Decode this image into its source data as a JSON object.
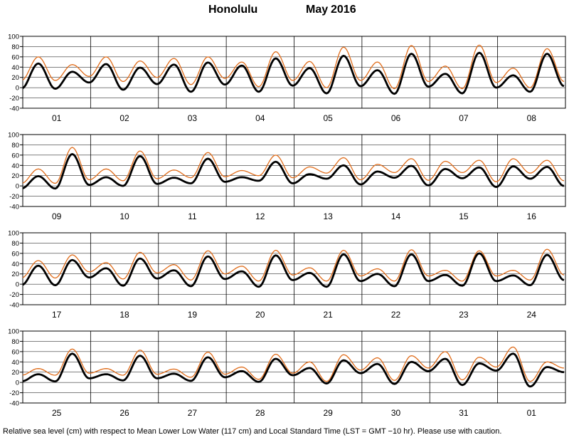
{
  "title": {
    "location": "Honolulu",
    "month": "May",
    "year": "2016"
  },
  "footer": "Relative sea level (cm) with respect to Mean Lower Low Water (117 cm) and Local Standard Time (LST = GMT −10 hr). Please use with caution.",
  "colors": {
    "observed": "#000000",
    "predicted": "#e06c1a",
    "grid": "#000000"
  },
  "chart_data": {
    "type": "line",
    "ylim": [
      -40,
      100
    ],
    "yticks": [
      -40,
      -20,
      0,
      20,
      40,
      60,
      80,
      100
    ],
    "grid": true,
    "series_info": [
      {
        "name": "",
        "color": "#e06c1a"
      },
      {
        "name": "",
        "color": "#000000"
      }
    ],
    "panels": [
      {
        "days": [
          "01",
          "02",
          "03",
          "04",
          "05",
          "06",
          "07",
          "08"
        ],
        "observed": [
          {
            "hour": 0,
            "high": 47,
            "low": -2
          },
          {
            "hour": 12,
            "high": 31,
            "low": 10
          },
          {
            "hour": 24,
            "high": 46,
            "low": -4
          },
          {
            "hour": 36,
            "high": 39,
            "low": 7
          },
          {
            "hour": 48,
            "high": 45,
            "low": -8
          },
          {
            "hour": 60,
            "high": 49,
            "low": 6
          },
          {
            "hour": 72,
            "high": 43,
            "low": -8
          },
          {
            "hour": 84,
            "high": 57,
            "low": 4
          },
          {
            "hour": 96,
            "high": 38,
            "low": -11
          },
          {
            "hour": 108,
            "high": 62,
            "low": 3
          },
          {
            "hour": 120,
            "high": 34,
            "low": -12
          },
          {
            "hour": 132,
            "high": 66,
            "low": 2
          },
          {
            "hour": 144,
            "high": 27,
            "low": -11
          },
          {
            "hour": 156,
            "high": 68,
            "low": 0
          },
          {
            "hour": 168,
            "high": 24,
            "low": -8
          },
          {
            "hour": 180,
            "high": 66,
            "low": 3
          }
        ],
        "predicted": [
          {
            "hour": 0,
            "high": 60,
            "low": 14
          },
          {
            "hour": 12,
            "high": 45,
            "low": 22
          },
          {
            "hour": 24,
            "high": 60,
            "low": 12
          },
          {
            "hour": 36,
            "high": 52,
            "low": 20
          },
          {
            "hour": 48,
            "high": 57,
            "low": 6
          },
          {
            "hour": 60,
            "high": 60,
            "low": 18
          },
          {
            "hour": 72,
            "high": 50,
            "low": 2
          },
          {
            "hour": 84,
            "high": 70,
            "low": 14
          },
          {
            "hour": 96,
            "high": 51,
            "low": 0
          },
          {
            "hour": 108,
            "high": 79,
            "low": 14
          },
          {
            "hour": 120,
            "high": 50,
            "low": -2
          },
          {
            "hour": 132,
            "high": 82,
            "low": 12
          },
          {
            "hour": 144,
            "high": 42,
            "low": -2
          },
          {
            "hour": 156,
            "high": 83,
            "low": 10
          },
          {
            "hour": 168,
            "high": 38,
            "low": 0
          },
          {
            "hour": 180,
            "high": 76,
            "low": 12
          }
        ]
      },
      {
        "days": [
          "09",
          "10",
          "11",
          "12",
          "13",
          "14",
          "15",
          "16"
        ],
        "observed": [
          {
            "hour": 0,
            "high": 19,
            "low": -5
          },
          {
            "hour": 12,
            "high": 62,
            "low": 2
          },
          {
            "hour": 24,
            "high": 17,
            "low": 0
          },
          {
            "hour": 36,
            "high": 58,
            "low": 4
          },
          {
            "hour": 48,
            "high": 16,
            "low": 5
          },
          {
            "hour": 60,
            "high": 53,
            "low": 8
          },
          {
            "hour": 72,
            "high": 17,
            "low": 10
          },
          {
            "hour": 84,
            "high": 47,
            "low": 5
          },
          {
            "hour": 96,
            "high": 23,
            "low": 14
          },
          {
            "hour": 108,
            "high": 40,
            "low": 3
          },
          {
            "hour": 120,
            "high": 28,
            "low": 16
          },
          {
            "hour": 132,
            "high": 39,
            "low": 1
          },
          {
            "hour": 144,
            "high": 33,
            "low": 15
          },
          {
            "hour": 156,
            "high": 36,
            "low": -2
          },
          {
            "hour": 168,
            "high": 38,
            "low": 14
          },
          {
            "hour": 180,
            "high": 37,
            "low": 0
          }
        ],
        "predicted": [
          {
            "hour": 0,
            "high": 33,
            "low": 5
          },
          {
            "hour": 12,
            "high": 75,
            "low": 12
          },
          {
            "hour": 24,
            "high": 33,
            "low": 10
          },
          {
            "hour": 36,
            "high": 68,
            "low": 14
          },
          {
            "hour": 48,
            "high": 31,
            "low": 16
          },
          {
            "hour": 60,
            "high": 65,
            "low": 18
          },
          {
            "hour": 72,
            "high": 30,
            "low": 20
          },
          {
            "hour": 84,
            "high": 60,
            "low": 16
          },
          {
            "hour": 96,
            "high": 37,
            "low": 25
          },
          {
            "hour": 108,
            "high": 55,
            "low": 12
          },
          {
            "hour": 120,
            "high": 42,
            "low": 26
          },
          {
            "hour": 132,
            "high": 53,
            "low": 11
          },
          {
            "hour": 144,
            "high": 48,
            "low": 26
          },
          {
            "hour": 156,
            "high": 50,
            "low": 8
          },
          {
            "hour": 168,
            "high": 53,
            "low": 25
          },
          {
            "hour": 180,
            "high": 50,
            "low": 10
          }
        ]
      },
      {
        "days": [
          "17",
          "18",
          "19",
          "20",
          "21",
          "22",
          "23",
          "24"
        ],
        "observed": [
          {
            "hour": 0,
            "high": 36,
            "low": -2
          },
          {
            "hour": 12,
            "high": 47,
            "low": 13
          },
          {
            "hour": 24,
            "high": 31,
            "low": -3
          },
          {
            "hour": 36,
            "high": 50,
            "low": 11
          },
          {
            "hour": 48,
            "high": 27,
            "low": -4
          },
          {
            "hour": 60,
            "high": 54,
            "low": 10
          },
          {
            "hour": 72,
            "high": 25,
            "low": -5
          },
          {
            "hour": 84,
            "high": 56,
            "low": 8
          },
          {
            "hour": 96,
            "high": 22,
            "low": -5
          },
          {
            "hour": 108,
            "high": 58,
            "low": 6
          },
          {
            "hour": 120,
            "high": 20,
            "low": -4
          },
          {
            "hour": 132,
            "high": 58,
            "low": 6
          },
          {
            "hour": 144,
            "high": 18,
            "low": -3
          },
          {
            "hour": 156,
            "high": 60,
            "low": 6
          },
          {
            "hour": 168,
            "high": 17,
            "low": -2
          },
          {
            "hour": 180,
            "high": 57,
            "low": 8
          }
        ],
        "predicted": [
          {
            "hour": 0,
            "high": 46,
            "low": 12
          },
          {
            "hour": 12,
            "high": 57,
            "low": 24
          },
          {
            "hour": 24,
            "high": 42,
            "low": 10
          },
          {
            "hour": 36,
            "high": 62,
            "low": 22
          },
          {
            "hour": 48,
            "high": 38,
            "low": 8
          },
          {
            "hour": 60,
            "high": 65,
            "low": 20
          },
          {
            "hour": 72,
            "high": 35,
            "low": 6
          },
          {
            "hour": 84,
            "high": 66,
            "low": 18
          },
          {
            "hour": 96,
            "high": 32,
            "low": 6
          },
          {
            "hour": 108,
            "high": 66,
            "low": 16
          },
          {
            "hour": 120,
            "high": 30,
            "low": 6
          },
          {
            "hour": 132,
            "high": 67,
            "low": 16
          },
          {
            "hour": 144,
            "high": 27,
            "low": 6
          },
          {
            "hour": 156,
            "high": 65,
            "low": 16
          },
          {
            "hour": 168,
            "high": 27,
            "low": 8
          },
          {
            "hour": 180,
            "high": 68,
            "low": 18
          }
        ]
      },
      {
        "days": [
          "25",
          "26",
          "27",
          "28",
          "29",
          "30",
          "31",
          "01"
        ],
        "observed": [
          {
            "hour": 0,
            "high": 16,
            "low": 2
          },
          {
            "hour": 12,
            "high": 56,
            "low": 8
          },
          {
            "hour": 24,
            "high": 16,
            "low": 4
          },
          {
            "hour": 36,
            "high": 52,
            "low": 8
          },
          {
            "hour": 48,
            "high": 17,
            "low": 3
          },
          {
            "hour": 60,
            "high": 49,
            "low": 10
          },
          {
            "hour": 72,
            "high": 22,
            "low": 1
          },
          {
            "hour": 84,
            "high": 46,
            "low": 14
          },
          {
            "hour": 96,
            "high": 28,
            "low": -2
          },
          {
            "hour": 108,
            "high": 43,
            "low": 18
          },
          {
            "hour": 120,
            "high": 36,
            "low": -3
          },
          {
            "hour": 132,
            "high": 40,
            "low": 22
          },
          {
            "hour": 144,
            "high": 46,
            "low": -5
          },
          {
            "hour": 156,
            "high": 37,
            "low": 23
          },
          {
            "hour": 168,
            "high": 56,
            "low": -8
          },
          {
            "hour": 180,
            "high": 30,
            "low": 20
          }
        ],
        "predicted": [
          {
            "hour": 0,
            "high": 27,
            "low": 14
          },
          {
            "hour": 12,
            "high": 65,
            "low": 18
          },
          {
            "hour": 24,
            "high": 27,
            "low": 14
          },
          {
            "hour": 36,
            "high": 63,
            "low": 16
          },
          {
            "hour": 48,
            "high": 26,
            "low": 10
          },
          {
            "hour": 60,
            "high": 59,
            "low": 16
          },
          {
            "hour": 72,
            "high": 30,
            "low": 6
          },
          {
            "hour": 84,
            "high": 55,
            "low": 18
          },
          {
            "hour": 96,
            "high": 40,
            "low": 2
          },
          {
            "hour": 108,
            "high": 54,
            "low": 24
          },
          {
            "hour": 120,
            "high": 48,
            "low": 4
          },
          {
            "hour": 132,
            "high": 52,
            "low": 28
          },
          {
            "hour": 144,
            "high": 60,
            "low": 5
          },
          {
            "hour": 156,
            "high": 49,
            "low": 30
          },
          {
            "hour": 168,
            "high": 69,
            "low": 2
          },
          {
            "hour": 180,
            "high": 40,
            "low": 28
          }
        ]
      }
    ]
  }
}
